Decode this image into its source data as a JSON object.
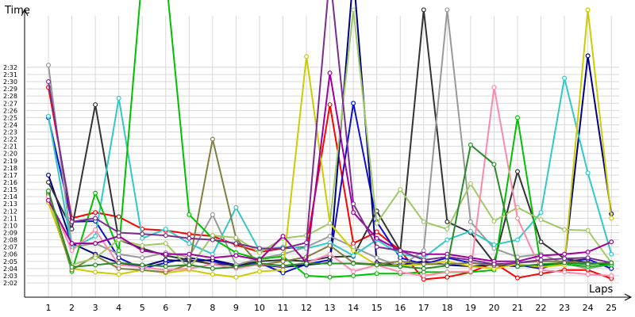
{
  "chart_data": {
    "type": "line",
    "ylabel": "Time",
    "xlabel": "Laps",
    "x": [
      1,
      2,
      3,
      4,
      5,
      6,
      7,
      8,
      9,
      10,
      11,
      12,
      13,
      14,
      15,
      16,
      17,
      18,
      19,
      20,
      21,
      22,
      23,
      24,
      25
    ],
    "y_ticks": [
      "2:02",
      "2:03",
      "2:04",
      "2:05",
      "2:06",
      "2:07",
      "2:08",
      "2:09",
      "2:10",
      "2:11",
      "2:12",
      "2:13",
      "2:14",
      "2:15",
      "2:16",
      "2:17",
      "2:18",
      "2:19",
      "2:20",
      "2:21",
      "2:22",
      "2:23",
      "2:24",
      "2:25",
      "2:26",
      "2:27",
      "2:28",
      "2:29",
      "2:30",
      "2:31",
      "2:32"
    ],
    "ylim_seconds": [
      121,
      155
    ],
    "xlim": [
      0.5,
      25.5
    ],
    "grid": true,
    "legend": "none",
    "series": [
      {
        "color": "#ff0000",
        "values": [
          149.2,
          131.0,
          131.8,
          131.2,
          129.5,
          129.3,
          128.8,
          128.5,
          127.3,
          126.3,
          126.8,
          127.0,
          146.8,
          127.5,
          129.1,
          126.5,
          122.5,
          122.8,
          123.5,
          124.8,
          122.7,
          123.3,
          123.8,
          123.8,
          122.6
        ]
      },
      {
        "color": "#1111cc",
        "values": [
          145.0,
          130.5,
          130.6,
          125.5,
          124.0,
          124.8,
          125.5,
          125.0,
          124.3,
          124.8,
          123.4,
          124.6,
          125.2,
          147.0,
          130.5,
          125.5,
          124.6,
          125.5,
          124.8,
          124.5,
          124.5,
          124.0,
          125.0,
          125.3,
          124.0
        ]
      },
      {
        "color": "#000080",
        "values": [
          137.0,
          127.5,
          126.0,
          124.8,
          124.3,
          125.2,
          125.0,
          125.2,
          124.5,
          124.5,
          124.2,
          124.5,
          124.8,
          165.0,
          124.8,
          124.5,
          125.0,
          124.5,
          124.3,
          124.5,
          124.3,
          124.5,
          124.7,
          153.6,
          131.6
        ]
      },
      {
        "color": "#333333",
        "values": [
          136.0,
          129.5,
          146.8,
          128.0,
          126.8,
          125.8,
          125.2,
          124.6,
          124.5,
          125.0,
          125.2,
          125.0,
          125.6,
          125.7,
          132.0,
          126.5,
          160.0,
          130.5,
          129.0,
          124.8,
          137.5,
          127.7,
          125.4,
          124.8,
          124.6
        ]
      },
      {
        "color": "#999999",
        "values": [
          152.3,
          127.0,
          127.5,
          126.0,
          125.5,
          126.2,
          125.6,
          131.5,
          124.5,
          125.4,
          126.0,
          127.0,
          128.5,
          127.0,
          125.5,
          124.3,
          126.5,
          160.0,
          130.5,
          126.8,
          125.6,
          126.0,
          124.7,
          124.0,
          124.6
        ]
      },
      {
        "color": "#32c8c8",
        "values": [
          145.2,
          126.8,
          128.5,
          147.7,
          128.2,
          129.5,
          127.5,
          126.0,
          132.5,
          126.5,
          127.0,
          126.8,
          127.6,
          125.8,
          128.0,
          126.0,
          125.5,
          128.0,
          129.2,
          127.3,
          128.0,
          131.8,
          150.5,
          137.3,
          126.0
        ]
      },
      {
        "color": "#00c000",
        "values": [
          134.5,
          123.6,
          134.5,
          126.5,
          165.0,
          165.0,
          131.5,
          128.2,
          126.2,
          125.3,
          125.7,
          123.0,
          122.8,
          123.0,
          123.3,
          123.3,
          123.5,
          123.5,
          123.5,
          123.8,
          145.0,
          124.3,
          124.6,
          124.3,
          124.5
        ]
      },
      {
        "color": "#cccc00",
        "values": [
          133.2,
          124.0,
          123.5,
          123.2,
          123.8,
          123.4,
          123.8,
          123.2,
          122.8,
          123.6,
          123.8,
          153.5,
          130.3,
          126.5,
          124.5,
          124.4,
          124.6,
          125.0,
          124.3,
          124.0,
          124.6,
          124.2,
          124.5,
          160.0,
          131.0
        ]
      },
      {
        "color": "#808040",
        "values": [
          134.2,
          123.8,
          125.8,
          124.0,
          123.8,
          123.5,
          124.6,
          142.0,
          128.2,
          124.5,
          125.0,
          125.6,
          127.2,
          124.8,
          124.6,
          125.0,
          124.6,
          124.6,
          124.8,
          124.4,
          124.8,
          125.0,
          125.0,
          124.7,
          124.8
        ]
      },
      {
        "color": "#a0c864",
        "values": [
          134.0,
          124.5,
          125.5,
          128.0,
          127.2,
          127.5,
          124.0,
          128.6,
          128.3,
          126.2,
          128.2,
          128.6,
          130.3,
          160.0,
          130.3,
          135.0,
          130.5,
          129.5,
          135.8,
          130.6,
          132.5,
          130.8,
          129.4,
          129.3,
          124.8
        ]
      },
      {
        "color": "#ff88aa",
        "values": [
          134.0,
          126.5,
          129.4,
          124.5,
          124.2,
          123.8,
          124.0,
          124.6,
          124.0,
          124.6,
          124.3,
          124.8,
          126.0,
          123.6,
          124.5,
          123.5,
          123.0,
          123.5,
          123.6,
          149.2,
          131.0,
          123.8,
          123.5,
          123.2,
          123.0
        ]
      },
      {
        "color": "#a000a0",
        "values": [
          133.5,
          127.5,
          127.5,
          128.5,
          126.5,
          126.0,
          126.0,
          125.5,
          125.8,
          125.2,
          128.5,
          124.8,
          151.2,
          131.8,
          128.2,
          126.5,
          126.0,
          126.0,
          125.5,
          125.0,
          125.0,
          125.8,
          126.0,
          126.3,
          127.7
        ]
      },
      {
        "color": "#7a2e8e",
        "values": [
          150.0,
          130.5,
          131.0,
          129.0,
          128.8,
          128.6,
          128.2,
          128.0,
          127.5,
          126.8,
          126.8,
          127.6,
          165.0,
          133.0,
          127.0,
          126.5,
          125.2,
          125.6,
          125.2,
          124.6,
          124.8,
          125.2,
          125.4,
          125.5,
          124.8
        ]
      },
      {
        "color": "#2a8a2a",
        "values": [
          134.8,
          124.2,
          124.5,
          124.8,
          124.5,
          124.3,
          124.5,
          124.0,
          124.2,
          124.7,
          124.4,
          124.7,
          124.7,
          124.7,
          124.5,
          124.3,
          124.0,
          124.4,
          141.2,
          138.5,
          124.3,
          124.6,
          124.8,
          124.6,
          124.8
        ]
      }
    ]
  }
}
